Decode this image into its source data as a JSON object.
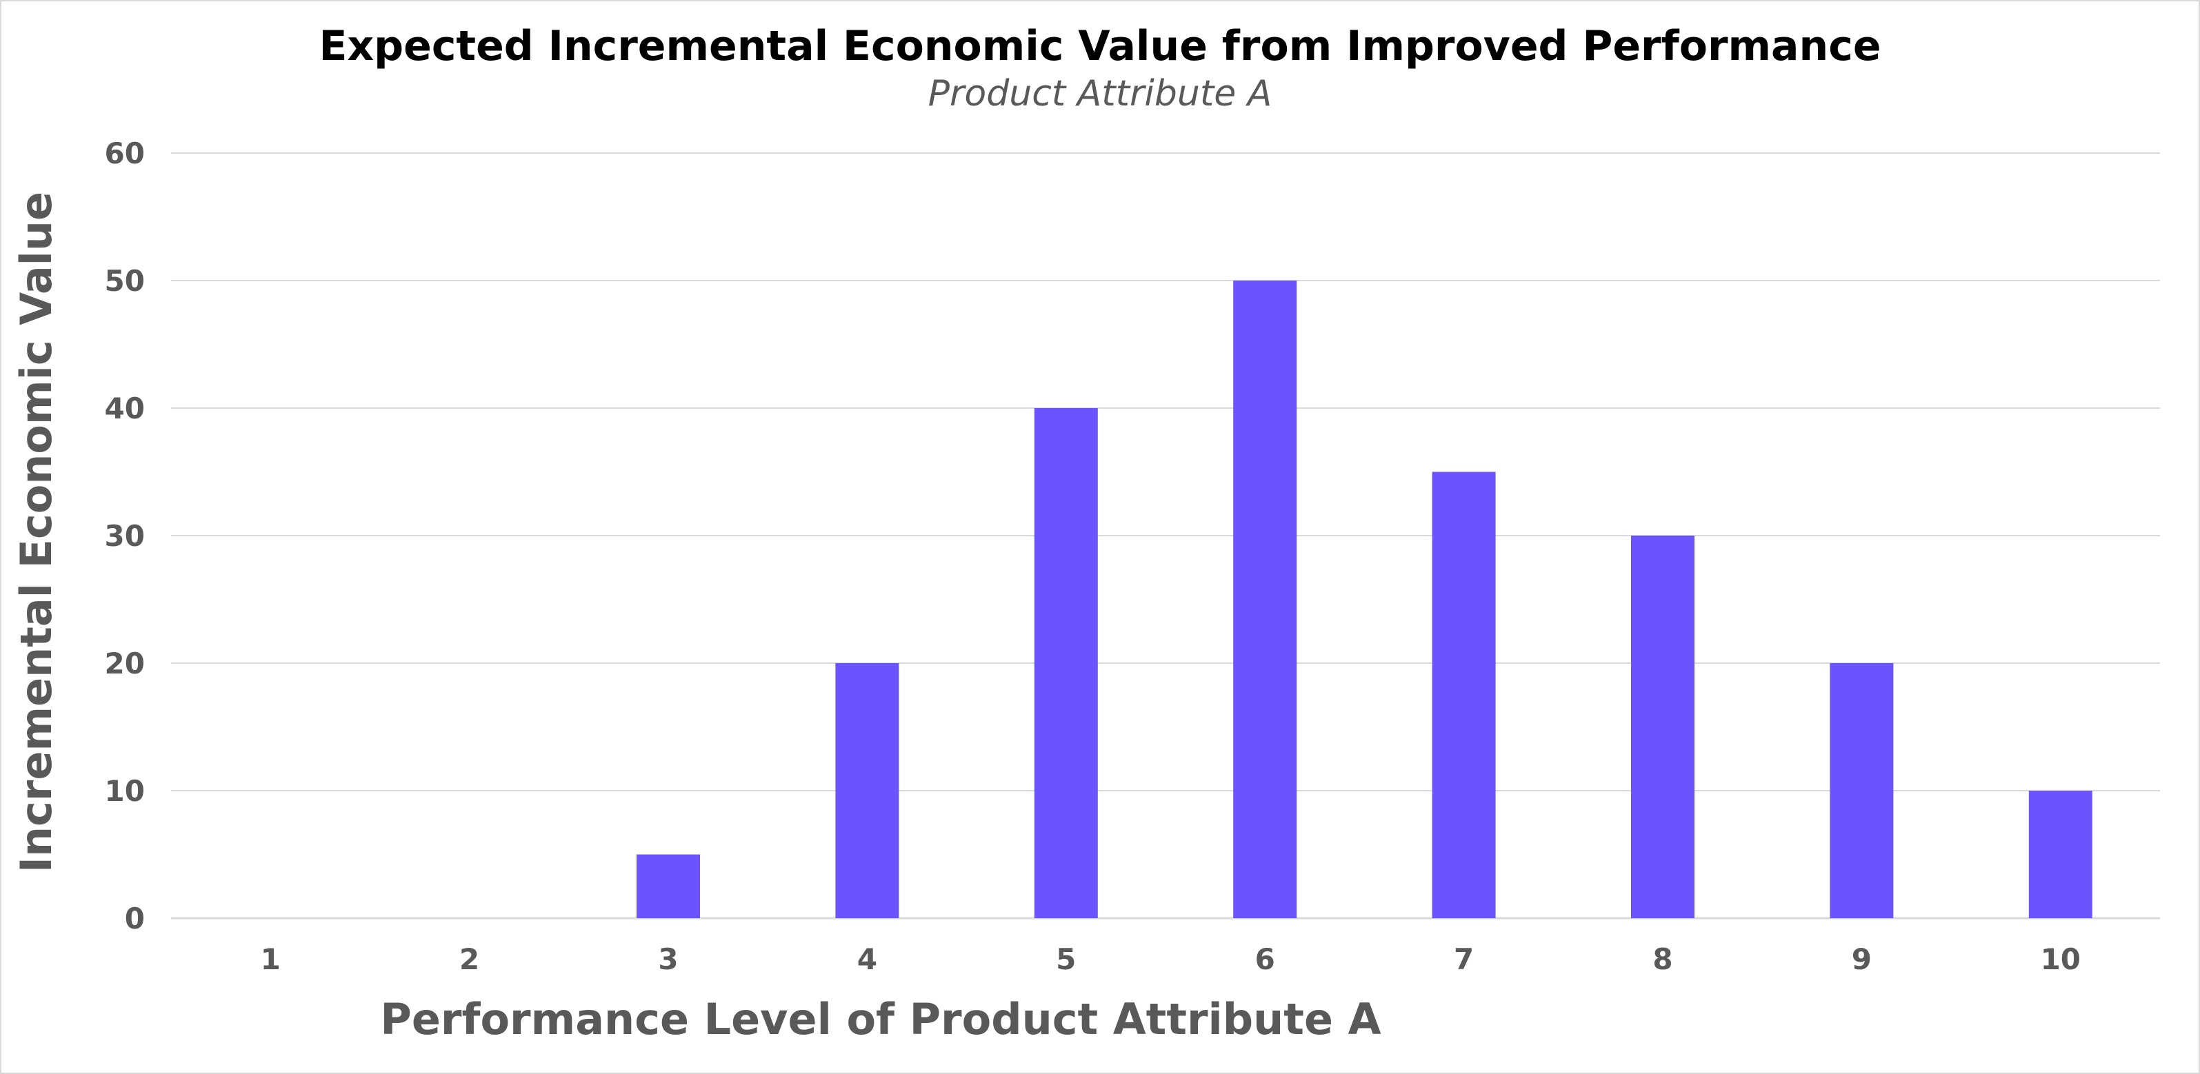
{
  "chart_data": {
    "type": "bar",
    "title": "Expected Incremental Economic Value from Improved Performance",
    "subtitle": "Product Attribute A",
    "xlabel": "Performance Level of Product Attribute A",
    "ylabel": "Incremental Economic Value",
    "categories": [
      "1",
      "2",
      "3",
      "4",
      "5",
      "6",
      "7",
      "8",
      "9",
      "10"
    ],
    "values": [
      0,
      0,
      5,
      20,
      40,
      50,
      35,
      30,
      20,
      10
    ],
    "ylim": [
      0,
      60
    ],
    "yticks": [
      "0",
      "10",
      "20",
      "30",
      "40",
      "50",
      "60"
    ],
    "grid": true,
    "legend": "none",
    "colors": {
      "bar": "#6b54fd",
      "grid": "#d9d9d9",
      "text": "#595959"
    }
  }
}
